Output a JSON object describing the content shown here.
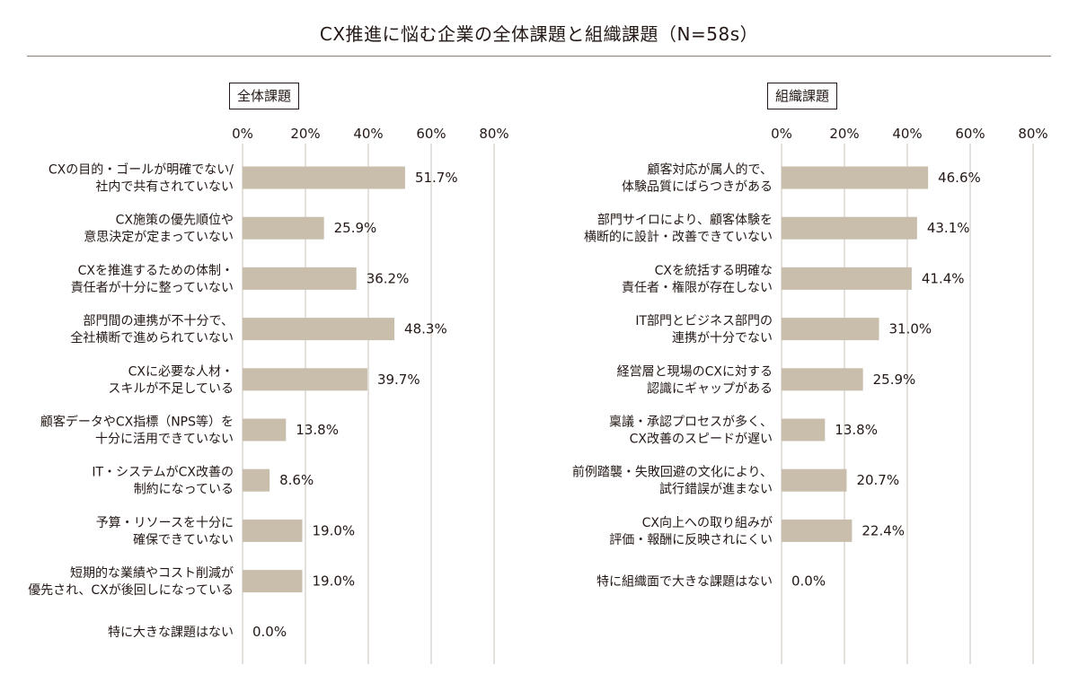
{
  "title": "CX推進に悩む企業の全体課題と組織課題（N=58s）",
  "colors": {
    "bar": "#c9beab",
    "grid": "#c8c2b7",
    "text": "#231815",
    "rule": "#8a817c"
  },
  "chart_data": [
    {
      "type": "bar",
      "orientation": "horizontal",
      "title": "全体課題",
      "xlim": [
        0,
        80
      ],
      "x_ticks": [
        "0%",
        "20%",
        "40%",
        "60%",
        "80%"
      ],
      "grid": true,
      "categories": [
        [
          "CXの目的・ゴールが明確でない/",
          "社内で共有されていない"
        ],
        [
          "CX施策の優先順位や",
          "意思決定が定まっていない"
        ],
        [
          "CXを推進するための体制・",
          "責任者が十分に整っていない"
        ],
        [
          "部門間の連携が不十分で、",
          "全社横断で進められていない"
        ],
        [
          "CXに必要な人材・",
          "スキルが不足している"
        ],
        [
          "顧客データやCX指標（NPS等）を",
          "十分に活用できていない"
        ],
        [
          "IT・システムがCX改善の",
          "制約になっている"
        ],
        [
          "予算・リソースを十分に",
          "確保できていない"
        ],
        [
          "短期的な業績やコスト削減が",
          "優先され、CXが後回しになっている"
        ],
        [
          "特に大きな課題はない"
        ]
      ],
      "values": [
        51.7,
        25.9,
        36.2,
        48.3,
        39.7,
        13.8,
        8.6,
        19.0,
        19.0,
        0.0
      ],
      "value_labels": [
        "51.7%",
        "25.9%",
        "36.2%",
        "48.3%",
        "39.7%",
        "13.8%",
        "8.6%",
        "19.0%",
        "19.0%",
        "0.0%"
      ]
    },
    {
      "type": "bar",
      "orientation": "horizontal",
      "title": "組織課題",
      "xlim": [
        0,
        80
      ],
      "x_ticks": [
        "0%",
        "20%",
        "40%",
        "60%",
        "80%"
      ],
      "grid": true,
      "categories": [
        [
          "顧客対応が属人的で、",
          "体験品質にばらつきがある"
        ],
        [
          "部門サイロにより、顧客体験を",
          "横断的に設計・改善できていない"
        ],
        [
          "CXを統括する明確な",
          "責任者・権限が存在しない"
        ],
        [
          "IT部門とビジネス部門の",
          "連携が十分でない"
        ],
        [
          "経営層と現場のCXに対する",
          "認識にギャップがある"
        ],
        [
          "稟議・承認プロセスが多く、",
          "CX改善のスピードが遅い"
        ],
        [
          "前例踏襲・失敗回避の文化により、",
          "試行錯誤が進まない"
        ],
        [
          "CX向上への取り組みが",
          "評価・報酬に反映されにくい"
        ],
        [
          "特に組織面で大きな課題はない"
        ]
      ],
      "values": [
        46.6,
        43.1,
        41.4,
        31.0,
        25.9,
        13.8,
        20.7,
        22.4,
        0.0
      ],
      "value_labels": [
        "46.6%",
        "43.1%",
        "41.4%",
        "31.0%",
        "25.9%",
        "13.8%",
        "20.7%",
        "22.4%",
        "0.0%"
      ]
    }
  ]
}
